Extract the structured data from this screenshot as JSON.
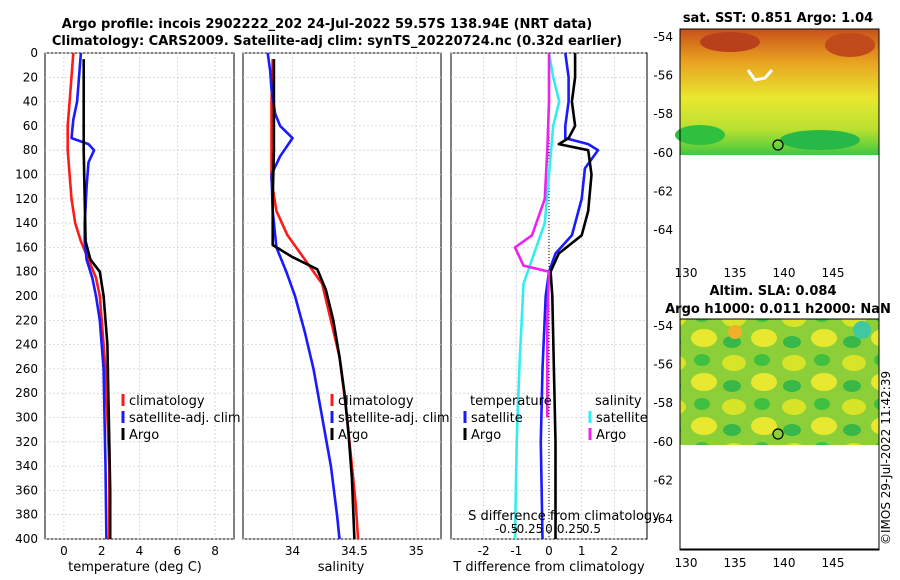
{
  "title_line1": "Argo profile: incois 2902222_202 24-Jul-2022 59.57S 138.94E (NRT data)",
  "title_line2": "Climatology: CARS2009. Satellite-adj clim: synTS_20220724.nc (0.32d earlier)",
  "colors": {
    "climatology": "#ff1a1a",
    "satellite": "#1a1aff",
    "argo": "#000000",
    "sal_sat": "#33eeee",
    "sal_argo": "#ee22ee"
  },
  "depth_ticks": [
    "0",
    "20",
    "40",
    "60",
    "80",
    "100",
    "120",
    "140",
    "160",
    "180",
    "200",
    "220",
    "240",
    "260",
    "280",
    "300",
    "320",
    "340",
    "360",
    "380",
    "400"
  ],
  "chart_data": [
    {
      "name": "temperature",
      "type": "line",
      "xlabel": "temperature (deg C)",
      "xlim": [
        -1,
        9
      ],
      "ylim": [
        0,
        400
      ],
      "xticks": [
        "0",
        "2",
        "4",
        "6",
        "8"
      ],
      "xtick_values": [
        0,
        2,
        4,
        6,
        8
      ],
      "legend": [
        "climatology",
        "satellite-adj. clim",
        "Argo"
      ],
      "series": [
        {
          "name": "climatology",
          "color_key": "climatology",
          "points": [
            [
              0.5,
              0
            ],
            [
              0.4,
              20
            ],
            [
              0.3,
              40
            ],
            [
              0.2,
              60
            ],
            [
              0.2,
              80
            ],
            [
              0.3,
              100
            ],
            [
              0.4,
              120
            ],
            [
              0.6,
              140
            ],
            [
              0.9,
              155
            ],
            [
              1.3,
              170
            ],
            [
              1.7,
              185
            ],
            [
              1.9,
              200
            ],
            [
              2.0,
              220
            ],
            [
              2.1,
              240
            ],
            [
              2.2,
              260
            ],
            [
              2.3,
              300
            ],
            [
              2.4,
              340
            ],
            [
              2.4,
              400
            ]
          ]
        },
        {
          "name": "satellite-adj. clim",
          "color_key": "satellite",
          "points": [
            [
              0.9,
              0
            ],
            [
              0.8,
              20
            ],
            [
              0.7,
              40
            ],
            [
              0.5,
              55
            ],
            [
              0.4,
              70
            ],
            [
              1.3,
              75
            ],
            [
              1.6,
              80
            ],
            [
              1.3,
              90
            ],
            [
              1.2,
              110
            ],
            [
              1.1,
              140
            ],
            [
              1.1,
              155
            ],
            [
              1.2,
              170
            ],
            [
              1.5,
              185
            ],
            [
              1.7,
              200
            ],
            [
              1.9,
              220
            ],
            [
              2.0,
              240
            ],
            [
              2.1,
              260
            ],
            [
              2.15,
              300
            ],
            [
              2.2,
              340
            ],
            [
              2.25,
              400
            ]
          ]
        },
        {
          "name": "Argo",
          "color_key": "argo",
          "points": [
            [
              1.05,
              5
            ],
            [
              1.05,
              40
            ],
            [
              1.05,
              80
            ],
            [
              1.1,
              120
            ],
            [
              1.15,
              155
            ],
            [
              1.4,
              170
            ],
            [
              1.9,
              180
            ],
            [
              2.1,
              200
            ],
            [
              2.2,
              220
            ],
            [
              2.3,
              240
            ],
            [
              2.35,
              280
            ],
            [
              2.4,
              320
            ],
            [
              2.45,
              360
            ],
            [
              2.45,
              400
            ]
          ]
        }
      ]
    },
    {
      "name": "salinity",
      "type": "line",
      "xlabel": "salinity",
      "xlim": [
        33.6,
        35.2
      ],
      "ylim": [
        0,
        400
      ],
      "xticks": [
        "34",
        "34.5",
        "35"
      ],
      "xtick_values": [
        34,
        34.5,
        35
      ],
      "legend": [
        "climatology",
        "satellite-adj. clim",
        "Argo"
      ],
      "series": [
        {
          "name": "climatology",
          "color_key": "climatology",
          "points": [
            [
              33.84,
              5
            ],
            [
              33.83,
              40
            ],
            [
              33.83,
              80
            ],
            [
              33.83,
              105
            ],
            [
              33.87,
              130
            ],
            [
              33.96,
              150
            ],
            [
              34.1,
              170
            ],
            [
              34.24,
              190
            ],
            [
              34.31,
              220
            ],
            [
              34.38,
              250
            ],
            [
              34.43,
              290
            ],
            [
              34.47,
              330
            ],
            [
              34.51,
              370
            ],
            [
              34.53,
              400
            ]
          ]
        },
        {
          "name": "satellite-adj. clim",
          "color_key": "satellite",
          "points": [
            [
              33.8,
              0
            ],
            [
              33.82,
              15
            ],
            [
              33.83,
              30
            ],
            [
              33.86,
              50
            ],
            [
              33.9,
              60
            ],
            [
              34.0,
              70
            ],
            [
              33.9,
              85
            ],
            [
              33.83,
              100
            ],
            [
              33.84,
              130
            ],
            [
              33.87,
              160
            ],
            [
              33.95,
              180
            ],
            [
              34.02,
              200
            ],
            [
              34.1,
              230
            ],
            [
              34.17,
              260
            ],
            [
              34.24,
              300
            ],
            [
              34.31,
              340
            ],
            [
              34.36,
              380
            ],
            [
              34.38,
              400
            ]
          ]
        },
        {
          "name": "Argo",
          "color_key": "argo",
          "points": [
            [
              33.85,
              5
            ],
            [
              33.85,
              40
            ],
            [
              33.85,
              80
            ],
            [
              33.84,
              120
            ],
            [
              33.84,
              158
            ],
            [
              34.0,
              168
            ],
            [
              34.2,
              178
            ],
            [
              34.27,
              195
            ],
            [
              34.33,
              220
            ],
            [
              34.38,
              250
            ],
            [
              34.42,
              280
            ],
            [
              34.45,
              310
            ],
            [
              34.48,
              350
            ],
            [
              34.5,
              400
            ]
          ]
        }
      ]
    },
    {
      "name": "differences",
      "type": "line",
      "xlabel": "T difference from climatology",
      "top_label": "S difference from climatology",
      "xlim": [
        -3,
        3
      ],
      "ylim": [
        0,
        400
      ],
      "xticks": [
        "-2",
        "-1",
        "0",
        "1",
        "2"
      ],
      "xtick_values": [
        -2,
        -1,
        0,
        1,
        2
      ],
      "sticks": [
        "-0.5",
        "-0.25",
        "0",
        "0.25",
        "0.5"
      ],
      "stick_values": [
        -0.5,
        -0.25,
        0,
        0.25,
        0.5
      ],
      "legend_temp_title": "temperature",
      "legend_sal_title": "salinity",
      "legend_temp": [
        "satellite",
        "Argo"
      ],
      "legend_sal": [
        "satellite",
        "Argo"
      ],
      "series": [
        {
          "name": "T satellite",
          "color_key": "satellite",
          "scale": "T",
          "points": [
            [
              0.5,
              0
            ],
            [
              0.6,
              20
            ],
            [
              0.6,
              40
            ],
            [
              0.5,
              60
            ],
            [
              0.5,
              70
            ],
            [
              1.2,
              75
            ],
            [
              1.5,
              80
            ],
            [
              1.1,
              95
            ],
            [
              1.0,
              120
            ],
            [
              0.7,
              150
            ],
            [
              0.2,
              165
            ],
            [
              0.0,
              180
            ],
            [
              -0.1,
              200
            ],
            [
              -0.2,
              260
            ],
            [
              -0.25,
              320
            ],
            [
              -0.2,
              400
            ]
          ]
        },
        {
          "name": "T Argo",
          "color_key": "argo",
          "scale": "T",
          "points": [
            [
              0.8,
              0
            ],
            [
              0.8,
              20
            ],
            [
              0.7,
              40
            ],
            [
              0.8,
              60
            ],
            [
              0.6,
              70
            ],
            [
              0.3,
              75
            ],
            [
              1.2,
              80
            ],
            [
              1.3,
              100
            ],
            [
              1.2,
              130
            ],
            [
              1.0,
              150
            ],
            [
              0.3,
              165
            ],
            [
              0.05,
              180
            ],
            [
              0.1,
              200
            ],
            [
              0.15,
              260
            ],
            [
              0.2,
              320
            ],
            [
              0.2,
              400
            ]
          ]
        },
        {
          "name": "S satellite",
          "color_key": "sal_sat",
          "scale": "S",
          "points": [
            [
              0.0,
              0
            ],
            [
              0.05,
              20
            ],
            [
              0.12,
              40
            ],
            [
              0.05,
              60
            ],
            [
              0.0,
              100
            ],
            [
              -0.05,
              140
            ],
            [
              -0.2,
              170
            ],
            [
              -0.3,
              190
            ],
            [
              -0.35,
              260
            ],
            [
              -0.38,
              320
            ],
            [
              -0.4,
              400
            ]
          ]
        },
        {
          "name": "S Argo",
          "color_key": "sal_argo",
          "scale": "S",
          "points": [
            [
              0.0,
              0
            ],
            [
              0.0,
              40
            ],
            [
              -0.02,
              80
            ],
            [
              -0.05,
              120
            ],
            [
              -0.2,
              150
            ],
            [
              -0.4,
              160
            ],
            [
              -0.3,
              175
            ],
            [
              0.0,
              180
            ],
            [
              -0.02,
              220
            ],
            [
              -0.02,
              300
            ]
          ]
        }
      ]
    }
  ],
  "sst_map": {
    "title": "sat. SST: 0.851 Argo: 1.04",
    "xticks": [
      "130",
      "135",
      "140",
      "145"
    ],
    "yticks": [
      "-54",
      "-56",
      "-58",
      "-60",
      "-62",
      "-64"
    ]
  },
  "sla_map": {
    "title_line1": "Altim. SLA: 0.084",
    "title_line2": "Argo h1000: 0.011 h2000: NaN",
    "xticks": [
      "130",
      "135",
      "140",
      "145"
    ],
    "yticks": [
      "-54",
      "-56",
      "-58",
      "-60",
      "-62",
      "-64"
    ]
  },
  "credit": "©IMOS 29-Jul-2022 11:42:39"
}
